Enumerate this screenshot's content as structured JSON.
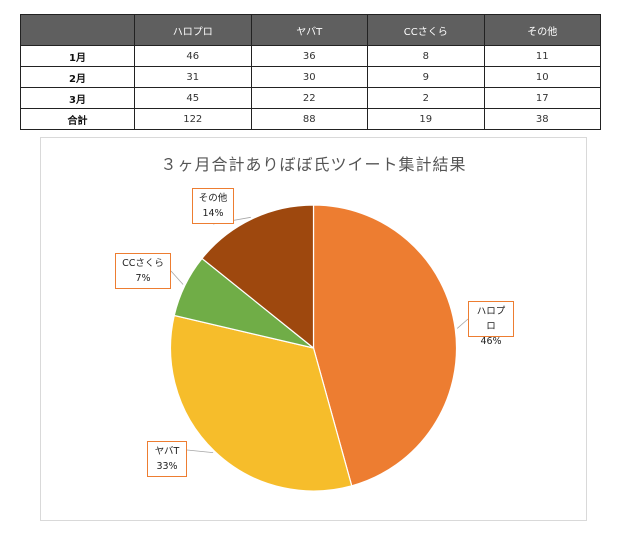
{
  "table": {
    "headers": [
      "",
      "ハロプロ",
      "ヤバT",
      "CCさくら",
      "その他"
    ],
    "rows": [
      {
        "label": "1月",
        "values": [
          46,
          36,
          8,
          11
        ]
      },
      {
        "label": "2月",
        "values": [
          31,
          30,
          9,
          10
        ]
      },
      {
        "label": "3月",
        "values": [
          45,
          22,
          2,
          17
        ]
      },
      {
        "label": "合計",
        "values": [
          122,
          88,
          19,
          38
        ]
      }
    ]
  },
  "chart_data": {
    "type": "pie",
    "title": "３ヶ月合計ありぼぼ氏ツイート集計結果",
    "categories": [
      "ハロプロ",
      "ヤバT",
      "CCさくら",
      "その他"
    ],
    "values": [
      122,
      88,
      19,
      38
    ],
    "percent_labels": [
      "46%",
      "33%",
      "7%",
      "14%"
    ],
    "colors": [
      "#ed7d31",
      "#f6bd2b",
      "#70ad47",
      "#9e480e"
    ],
    "label_border_color": "#ed7d31",
    "start_angle_deg": 0,
    "direction": "clockwise",
    "legend": "none"
  }
}
